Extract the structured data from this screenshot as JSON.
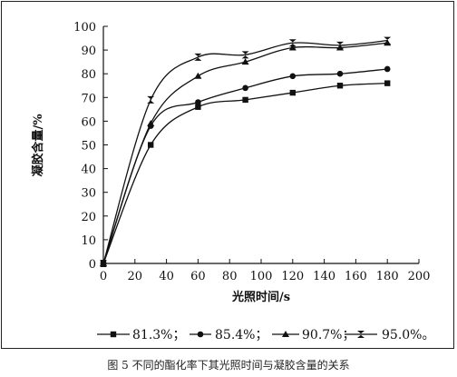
{
  "caption": "图 5 不同的酯化率下其光照时间与凝胶含量的关系",
  "chart_data": {
    "type": "line",
    "title": "",
    "xlabel": "光照时间/s",
    "ylabel": "凝胶含量/%",
    "xlim": [
      0,
      200
    ],
    "ylim": [
      0,
      100
    ],
    "xticks": [
      0,
      20,
      40,
      60,
      80,
      100,
      120,
      140,
      160,
      180,
      200
    ],
    "yticks": [
      0,
      10,
      20,
      30,
      40,
      50,
      60,
      70,
      80,
      90,
      100
    ],
    "grid": false,
    "legend_position": "bottom",
    "series": [
      {
        "name": "81.3%；",
        "marker": "square",
        "x": [
          0,
          30,
          60,
          90,
          120,
          150,
          180
        ],
        "y": [
          0,
          50,
          66,
          69,
          72,
          75,
          76
        ]
      },
      {
        "name": "85.4%；",
        "marker": "circle",
        "x": [
          0,
          30,
          60,
          90,
          120,
          150,
          180
        ],
        "y": [
          0,
          58,
          68,
          74,
          79,
          80,
          82
        ]
      },
      {
        "name": "90.7%；",
        "marker": "triangle",
        "x": [
          0,
          30,
          60,
          90,
          120,
          150,
          180
        ],
        "y": [
          0,
          59,
          79,
          85,
          91,
          91,
          93
        ]
      },
      {
        "name": "95.0%。",
        "marker": "hourglass",
        "x": [
          0,
          30,
          60,
          90,
          120,
          150,
          180
        ],
        "y": [
          0,
          69,
          87,
          88,
          93,
          92,
          94
        ]
      }
    ]
  }
}
